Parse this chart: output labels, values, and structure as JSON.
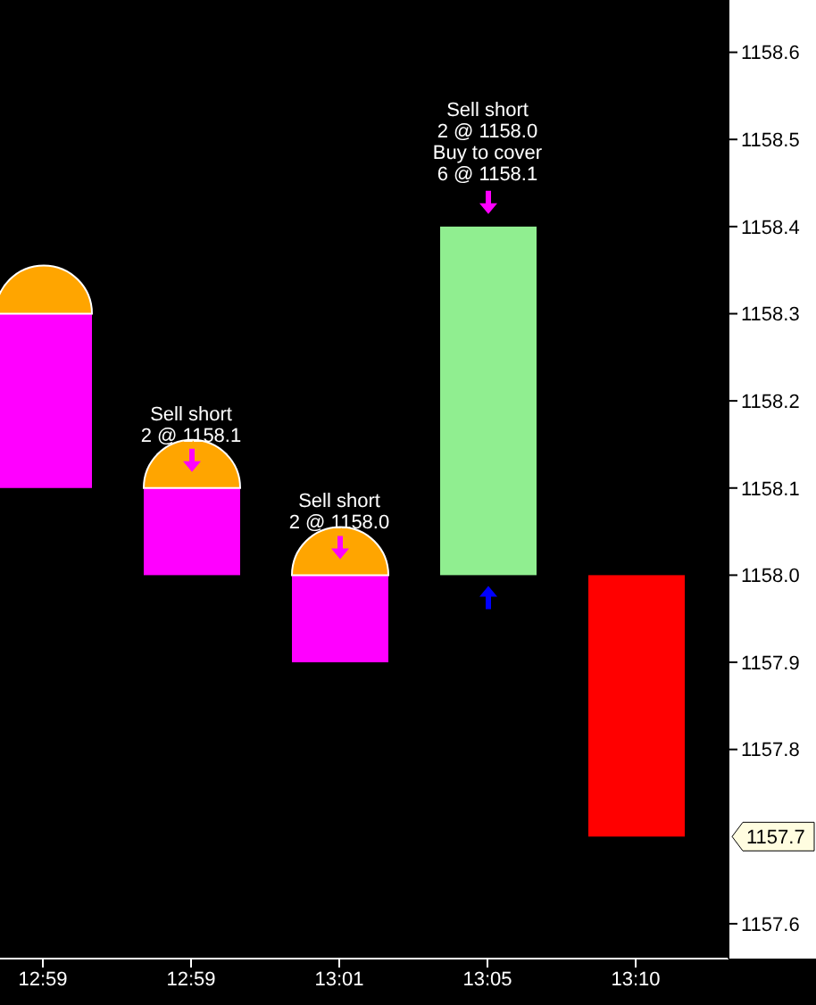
{
  "chart_data": {
    "type": "bar",
    "categories": [
      "12:59",
      "12:59",
      "13:01",
      "13:05",
      "13:10"
    ],
    "values": [
      0.2,
      0.1,
      0.1,
      0.4,
      0.3
    ],
    "base": [
      1158.1,
      1158.0,
      1157.9,
      1158.0,
      1157.7
    ],
    "colors": [
      "#ff00ff",
      "#ff00ff",
      "#ff00ff",
      "#90ee90",
      "#ff0000"
    ],
    "ylim": [
      1157.56,
      1158.66
    ],
    "yticks": [
      {
        "value": 1157.6,
        "label": "1157.6"
      },
      {
        "value": 1157.8,
        "label": "1157.8"
      },
      {
        "value": 1157.9,
        "label": "1157.9"
      },
      {
        "value": 1158.0,
        "label": "1158.0"
      },
      {
        "value": 1158.1,
        "label": "1158.1"
      },
      {
        "value": 1158.2,
        "label": "1158.2"
      },
      {
        "value": 1158.3,
        "label": "1158.3"
      },
      {
        "value": 1158.4,
        "label": "1158.4"
      },
      {
        "value": 1158.5,
        "label": "1158.5"
      },
      {
        "value": 1158.6,
        "label": "1158.6"
      }
    ],
    "grid": false,
    "annotations": [
      "Sell short\n2 @ 1158.1",
      "Sell short\n2 @ 1158.0",
      "Sell short\n2 @ 1158.0\nBuy to cover\n6 @ 1158.1",
      "1157.7"
    ]
  }
}
